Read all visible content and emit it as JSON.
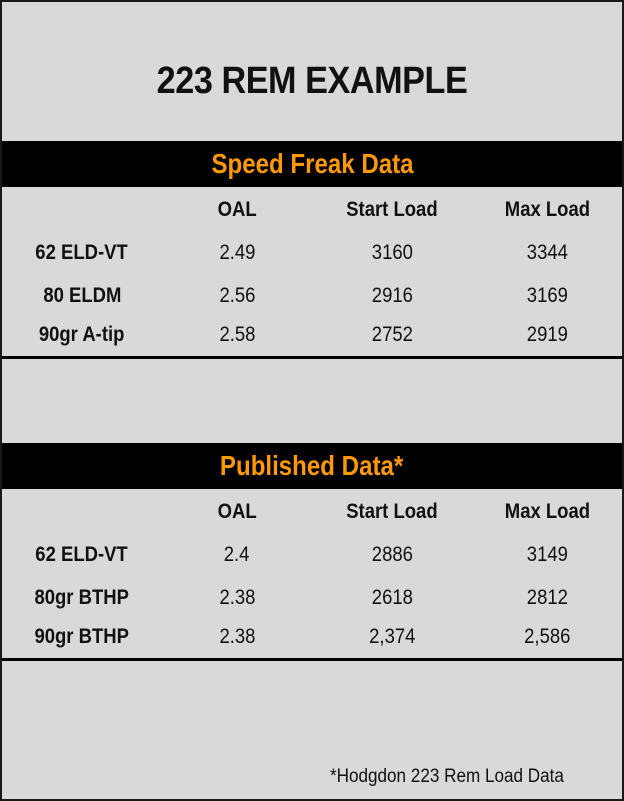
{
  "title": "223 REM EXAMPLE",
  "colors": {
    "band_background": "#000000",
    "band_text": "#ff9900",
    "page_background": "#d9d9d9"
  },
  "sections": [
    {
      "heading": "Speed Freak Data",
      "columns": [
        "",
        "OAL",
        "Start Load",
        "Max Load"
      ],
      "rows": [
        [
          "62 ELD-VT",
          "2.49",
          "3160",
          "3344"
        ],
        [
          "80 ELDM",
          "2.56",
          "2916",
          "3169"
        ],
        [
          "90gr A-tip",
          "2.58",
          "2752",
          "2919"
        ]
      ]
    },
    {
      "heading": "Published Data*",
      "columns": [
        "",
        "OAL",
        "Start Load",
        "Max Load"
      ],
      "rows": [
        [
          "62 ELD-VT",
          "2.4",
          "2886",
          "3149"
        ],
        [
          "80gr BTHP",
          "2.38",
          "2618",
          "2812"
        ],
        [
          "90gr BTHP",
          "2.38",
          "2,374",
          "2,586"
        ]
      ]
    }
  ],
  "footnote": "*Hodgdon 223 Rem Load Data"
}
